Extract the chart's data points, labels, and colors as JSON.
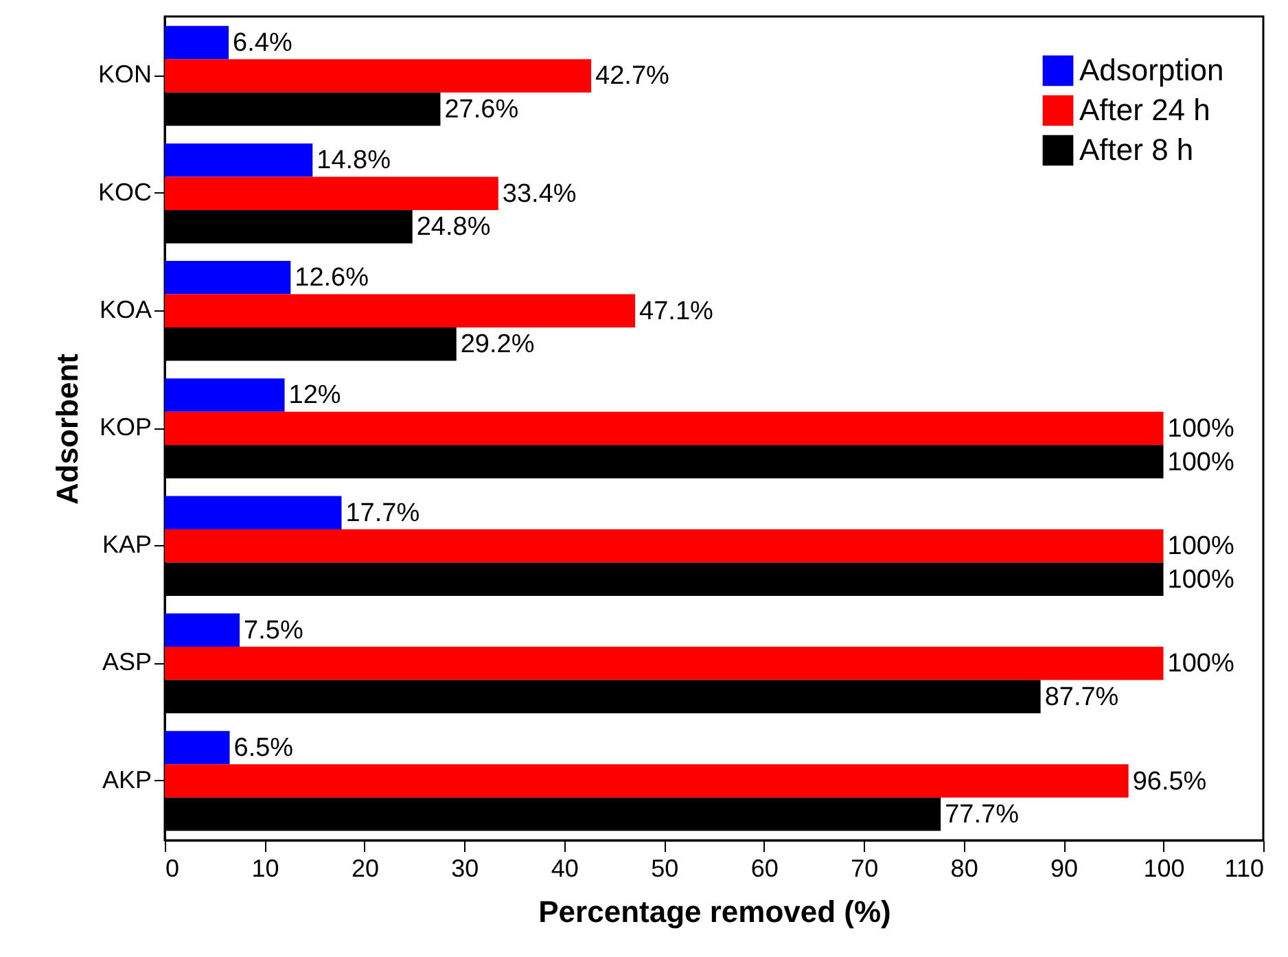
{
  "chart_data": {
    "type": "bar",
    "orientation": "horizontal",
    "xlabel": "Percentage removed (%)",
    "ylabel": "Adsorbent",
    "categories": [
      "KON",
      "KOC",
      "KOA",
      "KOP",
      "KAP",
      "ASP",
      "AKP"
    ],
    "series": [
      {
        "name": "Adsorption",
        "color": "#0000ff",
        "values": [
          6.4,
          14.8,
          12.6,
          12,
          17.7,
          7.5,
          6.5
        ],
        "value_labels": [
          "6.4%",
          "14.8%",
          "12.6%",
          "12%",
          "17.7%",
          "7.5%",
          "6.5%"
        ]
      },
      {
        "name": "After 24 h",
        "color": "#ff0000",
        "values": [
          42.7,
          33.4,
          47.1,
          100,
          100,
          100,
          96.5
        ],
        "value_labels": [
          "42.7%",
          "33.4%",
          "47.1%",
          "100%",
          "100%",
          "100%",
          "96.5%"
        ]
      },
      {
        "name": "After 8 h",
        "color": "#000000",
        "values": [
          27.6,
          24.8,
          29.2,
          100,
          100,
          87.7,
          77.7
        ],
        "value_labels": [
          "27.6%",
          "24.8%",
          "29.2%",
          "100%",
          "100%",
          "87.7%",
          "77.7%"
        ]
      }
    ],
    "xlim": [
      0,
      110
    ],
    "xticks": [
      0,
      10,
      20,
      30,
      40,
      50,
      60,
      70,
      80,
      90,
      100,
      110
    ],
    "legend": "top right",
    "grid": false
  }
}
